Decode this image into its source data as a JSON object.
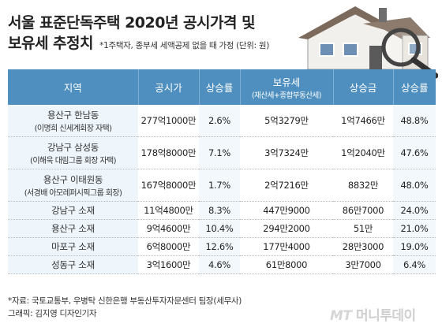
{
  "title": {
    "line1": "서울 표준단독주택 2020년 공시가격 및",
    "line2": "보유세 추정치",
    "note": "*1주택자, 종부세 세액공제 없을 때 가정 (단위: 원)"
  },
  "table": {
    "headers": {
      "region": "지역",
      "price": "공시가",
      "price_rate": "상승률",
      "tax": "보유세",
      "tax_sub": "(재산세+종합부동산세)",
      "increase": "상승금",
      "tax_rate": "상승률"
    },
    "rows": [
      {
        "region": "용산구 한남동",
        "region_sub": "(이명희 신세계회장 자택)",
        "price": "277억1000만",
        "price_rate": "2.6%",
        "tax": "5억3279만",
        "increase": "1억7466만",
        "tax_rate": "48.8%"
      },
      {
        "region": "강남구 삼성동",
        "region_sub": "(이해욱 대림그룹 회장 자택)",
        "price": "178억8000만",
        "price_rate": "7.1%",
        "tax": "3억7324만",
        "increase": "1억2040만",
        "tax_rate": "47.6%"
      },
      {
        "region": "용산구 이태원동",
        "region_sub": "(서경배 아모레퍼시픽그룹 회장)",
        "price": "167억8000만",
        "price_rate": "1.7%",
        "tax": "2억7216만",
        "increase": "8832만",
        "tax_rate": "48.0%"
      },
      {
        "region": "강남구 소재",
        "region_sub": "",
        "price": "11억4800만",
        "price_rate": "8.3%",
        "tax": "447만9000",
        "increase": "86만7000",
        "tax_rate": "24.0%"
      },
      {
        "region": "용산구 소재",
        "region_sub": "",
        "price": "9억4600만",
        "price_rate": "10.4%",
        "tax": "294만2000",
        "increase": "51만",
        "tax_rate": "21.0%"
      },
      {
        "region": "마포구 소재",
        "region_sub": "",
        "price": "6억8000만",
        "price_rate": "12.6%",
        "tax": "177만4000",
        "increase": "28만3000",
        "tax_rate": "19.0%"
      },
      {
        "region": "성동구 소재",
        "region_sub": "",
        "price": "3억1600만",
        "price_rate": "4.6%",
        "tax": "61만8000",
        "increase": "3만7000",
        "tax_rate": "6.4%"
      }
    ]
  },
  "source": {
    "line1": "*자료: 국토교통부, 우병탁 신한은행 부동산투자자문센터 팀장(세무사)",
    "line2": "그래픽: 김지영 디자인기자"
  },
  "logo": {
    "mt": "MT",
    "name": "머니투데이"
  },
  "colors": {
    "header": "#4e8fbf",
    "region_bg": "#eef5fb"
  }
}
